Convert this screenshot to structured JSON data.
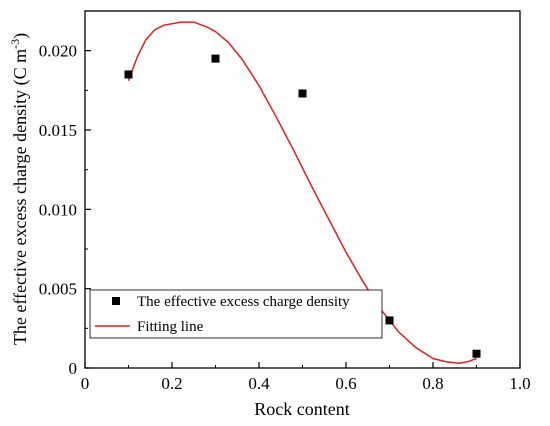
{
  "chart_data": {
    "type": "scatter",
    "title": "",
    "xlabel": "Rock content",
    "ylabel_main": "The effective excess charge density (C m",
    "ylabel_sup": "-3",
    "ylabel_close": ")",
    "xlim": [
      0,
      1.0
    ],
    "ylim": [
      0,
      0.0225
    ],
    "x_ticks": [
      0,
      0.2,
      0.4,
      0.6,
      0.8,
      1.0
    ],
    "x_tick_labels": [
      "0",
      "0.2",
      "0.4",
      "0.6",
      "0.8",
      "1.0"
    ],
    "y_ticks": [
      0,
      0.005,
      0.01,
      0.015,
      0.02
    ],
    "y_tick_labels": [
      "0",
      "0.005",
      "0.010",
      "0.015",
      "0.020"
    ],
    "grid": false,
    "legend_position": "bottom-left",
    "series": [
      {
        "name": "The effective excess charge density",
        "kind": "scatter",
        "marker": "square",
        "color": "#000000",
        "x": [
          0.1,
          0.3,
          0.5,
          0.7,
          0.9
        ],
        "y": [
          0.0185,
          0.0195,
          0.0173,
          0.003,
          0.0009
        ]
      },
      {
        "name": "Fitting line",
        "kind": "line",
        "color": "#e02020",
        "x": [
          0.1,
          0.12,
          0.14,
          0.16,
          0.18,
          0.2,
          0.22,
          0.25,
          0.28,
          0.3,
          0.33,
          0.36,
          0.4,
          0.44,
          0.48,
          0.52,
          0.56,
          0.6,
          0.64,
          0.68,
          0.72,
          0.76,
          0.8,
          0.83,
          0.86,
          0.88,
          0.9
        ],
        "y": [
          0.0181,
          0.0196,
          0.0207,
          0.0213,
          0.0216,
          0.0217,
          0.0218,
          0.0218,
          0.0215,
          0.0212,
          0.0205,
          0.0195,
          0.0178,
          0.0158,
          0.0137,
          0.0115,
          0.0094,
          0.0073,
          0.0054,
          0.0037,
          0.0023,
          0.0013,
          0.0006,
          0.0004,
          0.0003,
          0.0004,
          0.0006
        ]
      }
    ]
  }
}
